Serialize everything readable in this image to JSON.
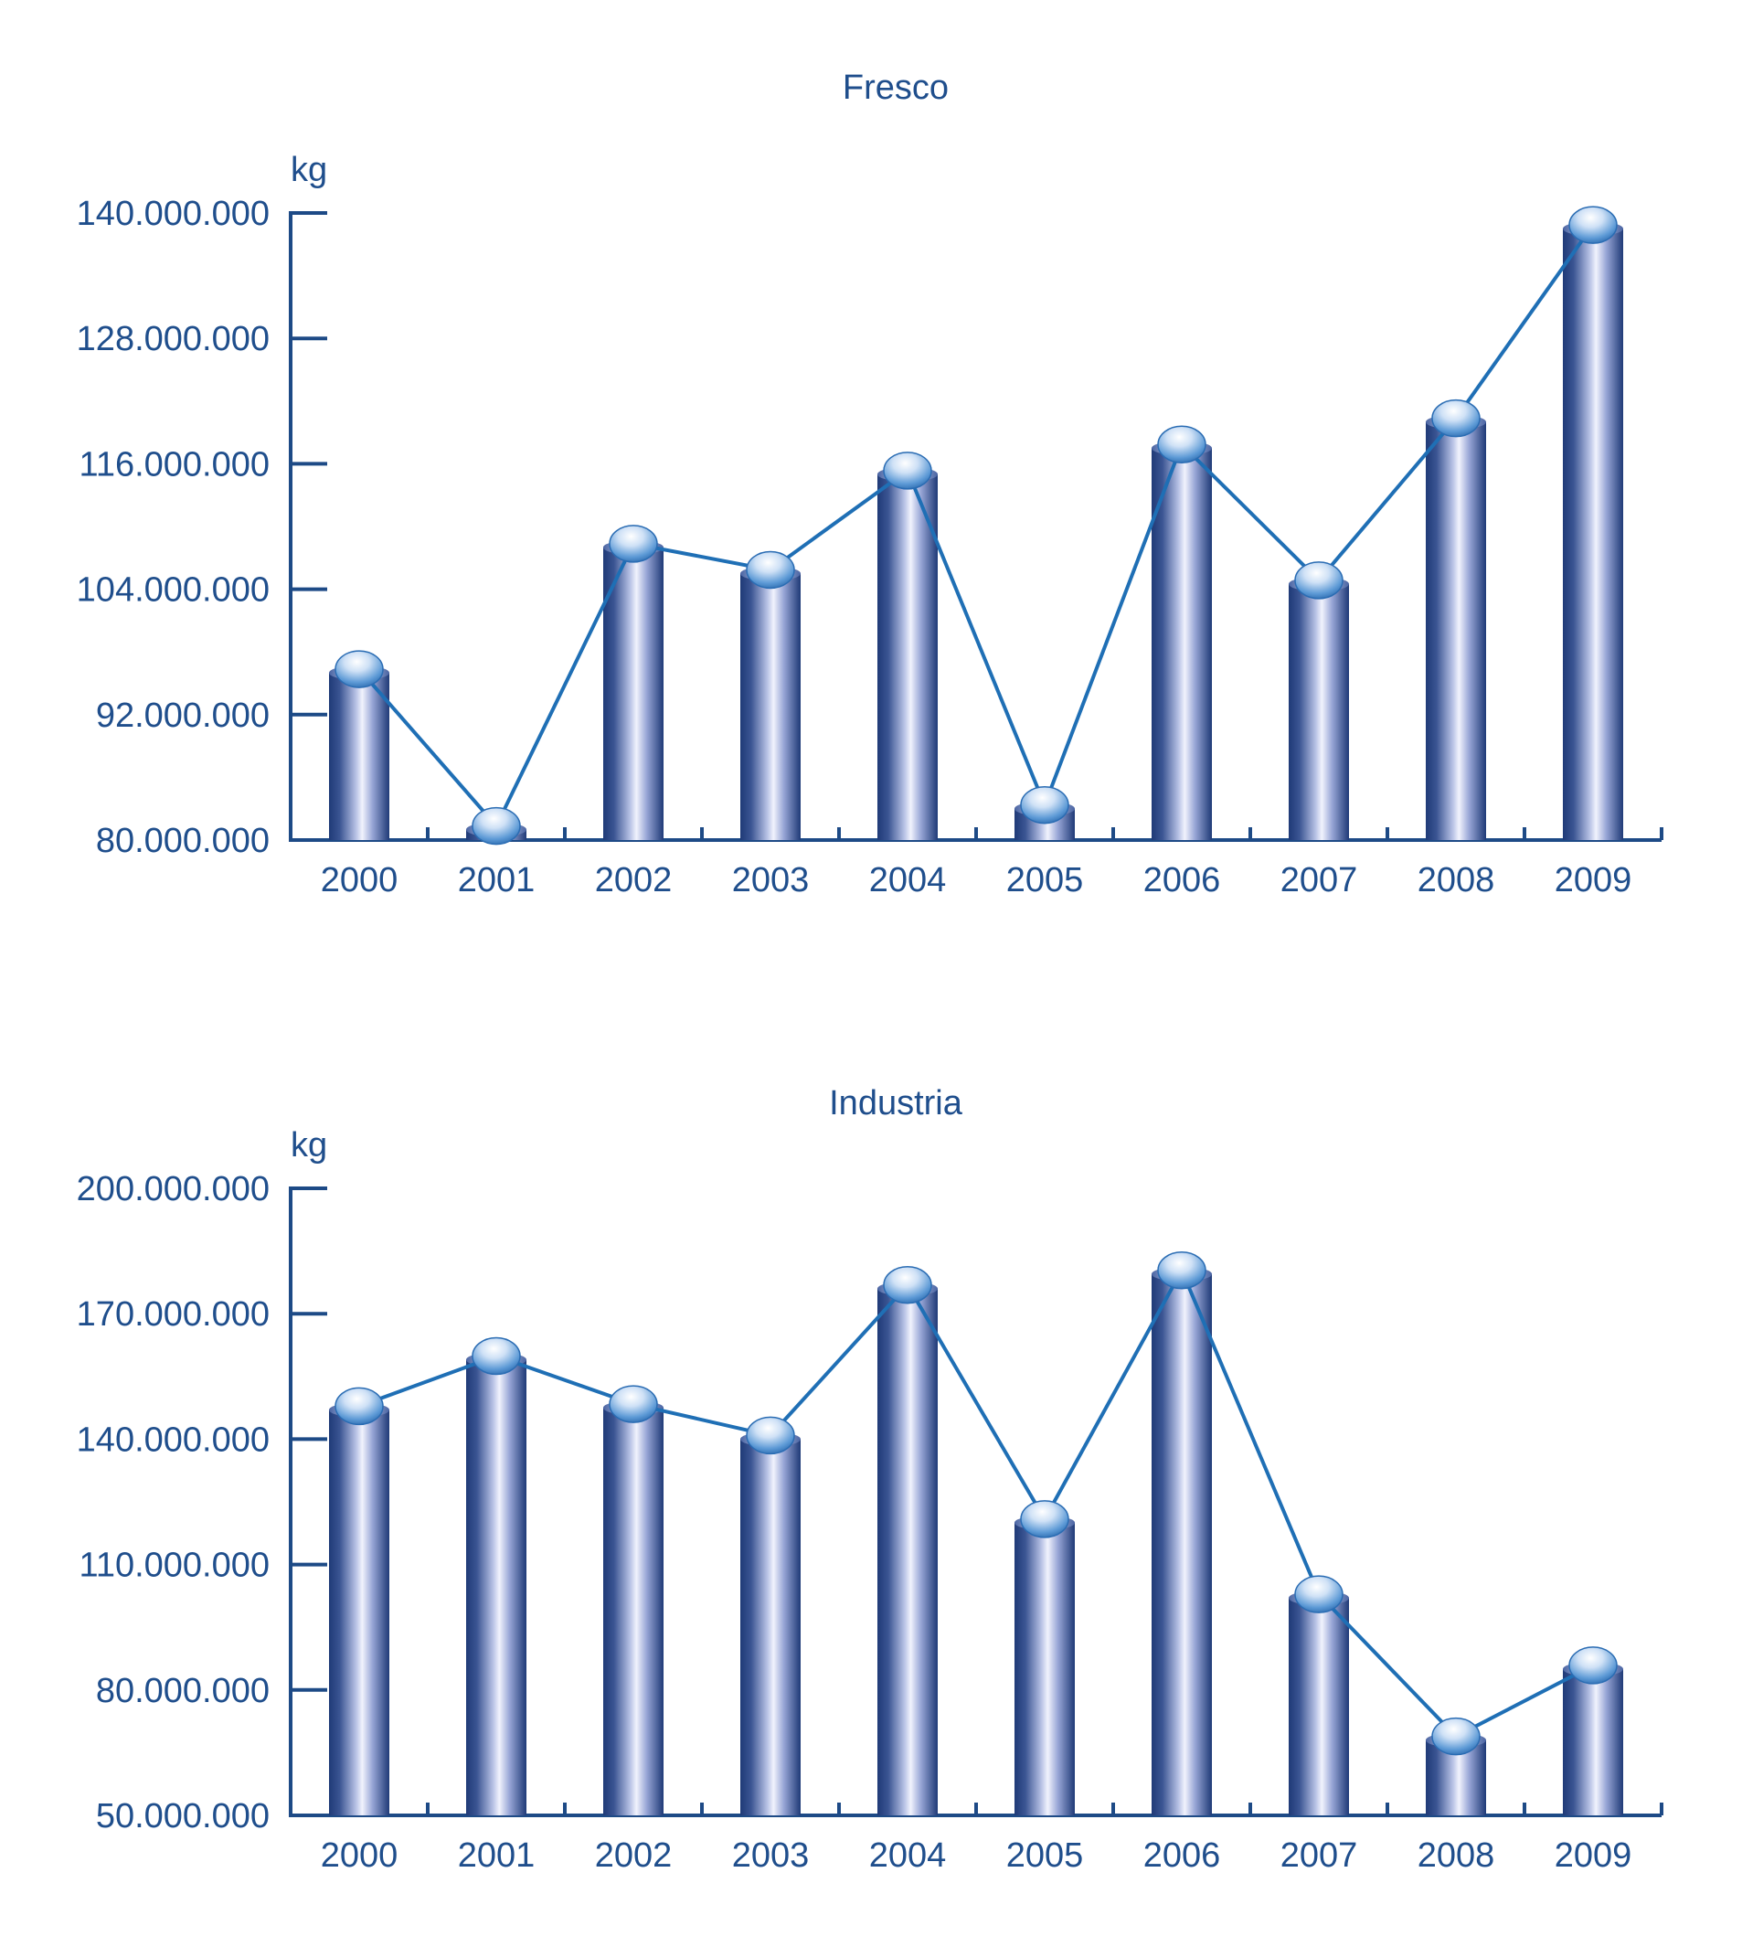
{
  "colors": {
    "axis": "#1d4a86",
    "text": "#1f4e8c",
    "line": "#1f6fb5",
    "bar_dark": "#233f7c",
    "bar_light": "#eef0fb",
    "cap": "#3f86c9"
  },
  "chart_data": [
    {
      "type": "bar",
      "title": "Fresco",
      "ylabel": "kg",
      "xlabel": "",
      "categories": [
        "2000",
        "2001",
        "2002",
        "2003",
        "2004",
        "2005",
        "2006",
        "2007",
        "2008",
        "2009"
      ],
      "values": [
        96000000,
        81000000,
        108000000,
        105500000,
        115000000,
        83000000,
        117500000,
        104500000,
        120000000,
        138500000
      ],
      "overlay": "line",
      "ylim": [
        80000000,
        140000000
      ],
      "yticks": [
        80000000,
        92000000,
        104000000,
        116000000,
        128000000,
        140000000
      ],
      "ytick_labels": [
        "80.000.000",
        "92.000.000",
        "104.000.000",
        "116.000.000",
        "128.000.000",
        "140.000.000"
      ]
    },
    {
      "type": "bar",
      "title": "Industria",
      "ylabel": "kg",
      "xlabel": "",
      "categories": [
        "2000",
        "2001",
        "2002",
        "2003",
        "2004",
        "2005",
        "2006",
        "2007",
        "2008",
        "2009"
      ],
      "values": [
        147000000,
        159000000,
        147500000,
        140000000,
        176000000,
        120000000,
        179500000,
        102000000,
        68000000,
        85000000
      ],
      "overlay": "line",
      "ylim": [
        50000000,
        200000000
      ],
      "yticks": [
        50000000,
        80000000,
        110000000,
        140000000,
        170000000,
        200000000
      ],
      "ytick_labels": [
        "50.000.000",
        "80.000.000",
        "110.000.000",
        "140.000.000",
        "170.000.000",
        "200.000.000"
      ]
    }
  ]
}
